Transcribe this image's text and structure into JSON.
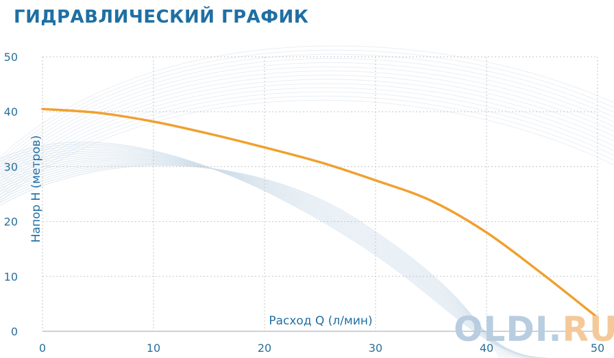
{
  "title": "ГИДРАВЛИЧЕСКИЙ ГРАФИК",
  "watermark": {
    "main": "OLDI.",
    "accent": "RU"
  },
  "colors": {
    "curve": "#f0a030",
    "title": "#1f6fa3",
    "ticks": "#2a6f9a",
    "grid": "#c5c5c5"
  },
  "chart_data": {
    "type": "line",
    "title": "ГИДРАВЛИЧЕСКИЙ ГРАФИК",
    "xlabel": "Расход Q (л/мин)",
    "ylabel": "Напор H (метров)",
    "xlim": [
      0,
      50
    ],
    "ylim": [
      0,
      50
    ],
    "x_ticks": [
      "0",
      "10",
      "20",
      "30",
      "40",
      "50"
    ],
    "y_ticks": [
      "0",
      "10",
      "20",
      "30",
      "40",
      "50"
    ],
    "grid": true,
    "series": [
      {
        "x": [
          0,
          5,
          10,
          15,
          20,
          25,
          30,
          35,
          40,
          45,
          50
        ],
        "y": [
          40.5,
          39.8,
          38.2,
          36,
          33.5,
          30.8,
          27.5,
          23.8,
          18,
          10.5,
          2.5
        ]
      }
    ]
  }
}
